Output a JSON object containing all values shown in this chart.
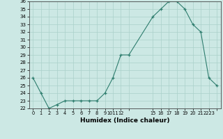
{
  "title": "",
  "xlabel": "Humidex (Indice chaleur)",
  "ylabel": "",
  "x_values": [
    0,
    1,
    2,
    3,
    4,
    5,
    6,
    7,
    8,
    9,
    10,
    11,
    12,
    15,
    16,
    17,
    18,
    19,
    20,
    21,
    22,
    23
  ],
  "y_values": [
    26,
    24,
    22,
    22.5,
    23,
    23,
    23,
    23,
    23,
    24,
    26,
    29,
    29,
    34,
    35,
    36,
    36,
    35,
    33,
    32,
    26,
    25
  ],
  "line_color": "#2e7d6e",
  "marker_color": "#2e7d6e",
  "bg_color": "#cce8e4",
  "grid_color": "#aad0ca",
  "ylim_min": 22,
  "ylim_max": 36,
  "ytick_step": 1,
  "figsize": [
    3.2,
    2.0
  ],
  "dpi": 100
}
